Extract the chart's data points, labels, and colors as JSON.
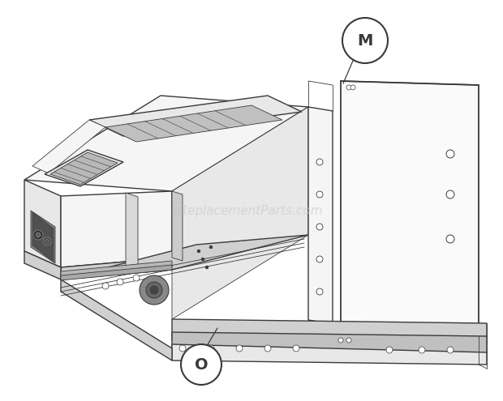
{
  "bg_color": "#ffffff",
  "line_color": "#3a3a3a",
  "light_fill": "#f5f5f5",
  "mid_fill": "#e8e8e8",
  "dark_fill": "#d0d0d0",
  "very_light": "#fafafa",
  "watermark_text": "eReplacementParts.com",
  "watermark_color": "#c8c8c8",
  "watermark_fontsize": 11,
  "label_M": "M",
  "label_O": "O",
  "label_fontsize": 12,
  "figsize": [
    6.2,
    4.95
  ],
  "dpi": 100
}
